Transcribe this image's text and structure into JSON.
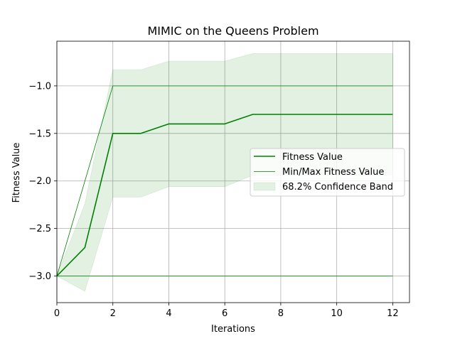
{
  "chart_data": {
    "type": "line",
    "title": "MIMIC on the Queens Problem",
    "xlabel": "Iterations",
    "ylabel": "Fitness Value",
    "xlim": [
      0,
      12.6
    ],
    "ylim": [
      -3.28,
      -0.53
    ],
    "xticks": [
      0,
      2,
      4,
      6,
      8,
      10,
      12
    ],
    "xtick_labels": [
      "0",
      "2",
      "4",
      "6",
      "8",
      "10",
      "12"
    ],
    "yticks": [
      -3.0,
      -2.5,
      -2.0,
      -1.5,
      -1.0
    ],
    "ytick_labels": [
      "−3.0",
      "−2.5",
      "−2.0",
      "−1.5",
      "−1.0"
    ],
    "grid": true,
    "legend_position": "center-right",
    "x": [
      0,
      1,
      2,
      3,
      4,
      5,
      6,
      7,
      8,
      9,
      10,
      11,
      12
    ],
    "series": [
      {
        "name": "Fitness Value",
        "values": [
          -3.0,
          -2.7,
          -1.5,
          -1.5,
          -1.4,
          -1.4,
          -1.4,
          -1.3,
          -1.3,
          -1.3,
          -1.3,
          -1.3,
          -1.3
        ],
        "color": "#008000"
      },
      {
        "name": "Min/Max Fitness Value",
        "max": [
          -3.0,
          -2.0,
          -1.0,
          -1.0,
          -1.0,
          -1.0,
          -1.0,
          -1.0,
          -1.0,
          -1.0,
          -1.0,
          -1.0,
          -1.0
        ],
        "min": [
          -3.0,
          -3.0,
          -3.0,
          -3.0,
          -3.0,
          -3.0,
          -3.0,
          -3.0,
          -3.0,
          -3.0,
          -3.0,
          -3.0,
          -3.0
        ],
        "color": "#008000"
      },
      {
        "name": "68.2% Confidence Band",
        "upper": [
          -3.0,
          -2.24,
          -0.83,
          -0.83,
          -0.74,
          -0.74,
          -0.74,
          -0.66,
          -0.66,
          -0.66,
          -0.66,
          -0.66,
          -0.66
        ],
        "lower": [
          -3.0,
          -3.16,
          -2.17,
          -2.17,
          -2.06,
          -2.06,
          -2.06,
          -1.94,
          -1.94,
          -1.94,
          -1.94,
          -1.94,
          -1.94
        ],
        "color": "#008000",
        "opacity": 0.11
      }
    ]
  }
}
